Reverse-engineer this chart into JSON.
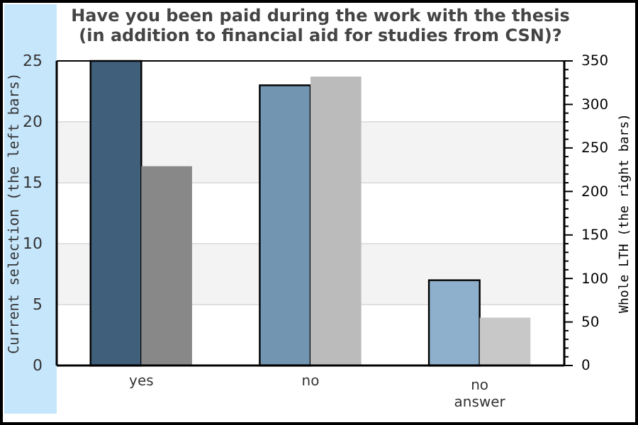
{
  "chart_data": {
    "type": "bar",
    "title": "Have you been paid during the work with the thesis\n(in addition to financial aid for studies from CSN)?",
    "ylabel": "Current selection (the left bars)",
    "y2label": "Whole LTH (the right bars)",
    "categories": [
      "yes",
      "no",
      "no\nanswer"
    ],
    "series": [
      {
        "colors": [
          "#3f5f7b",
          "#7295b1",
          "#8fb0cc"
        ],
        "values": [
          25,
          23,
          7
        ]
      },
      {
        "colors": [
          "#888888",
          "#bbbbbb",
          "#c8c8c8"
        ],
        "values": [
          229,
          332,
          55
        ],
        "axis": "y2"
      }
    ],
    "ylim": [
      0,
      25
    ],
    "yticks": [
      0,
      5,
      10,
      15,
      20,
      25
    ],
    "y2lim": [
      0,
      350
    ],
    "y2ticks": [
      0,
      {
        "value": 10,
        "label": null
      },
      {
        "value": 20,
        "label": null
      },
      {
        "value": 30,
        "label": null
      },
      {
        "value": 40,
        "label": null
      },
      50,
      {
        "value": 60,
        "label": null
      },
      {
        "value": 70,
        "label": null
      },
      {
        "value": 80,
        "label": null
      },
      {
        "value": 90,
        "label": null
      },
      100,
      {
        "value": 110,
        "label": null
      },
      {
        "value": 120,
        "label": null
      },
      {
        "value": 130,
        "label": null
      },
      {
        "value": 140,
        "label": null
      },
      150,
      {
        "value": 160,
        "label": null
      },
      {
        "value": 170,
        "label": null
      },
      {
        "value": 180,
        "label": null
      },
      {
        "value": 190,
        "label": null
      },
      200,
      {
        "value": 210,
        "label": null
      },
      {
        "value": 220,
        "label": null
      },
      {
        "value": 230,
        "label": null
      },
      {
        "value": 240,
        "label": null
      },
      250,
      {
        "value": 260,
        "label": null
      },
      {
        "value": 270,
        "label": null
      },
      {
        "value": 280,
        "label": null
      },
      {
        "value": 290,
        "label": null
      },
      300,
      {
        "value": 310,
        "label": null
      },
      {
        "value": 320,
        "label": null
      },
      {
        "value": 330,
        "label": null
      },
      {
        "value": 340,
        "label": null
      },
      350
    ],
    "bands": [
      {
        "axis": "y",
        "from": 5,
        "to": 10,
        "color": "#f3f3f3"
      },
      {
        "axis": "y",
        "from": 15,
        "to": 20,
        "color": "#f3f3f3"
      }
    ],
    "grid": "y"
  }
}
